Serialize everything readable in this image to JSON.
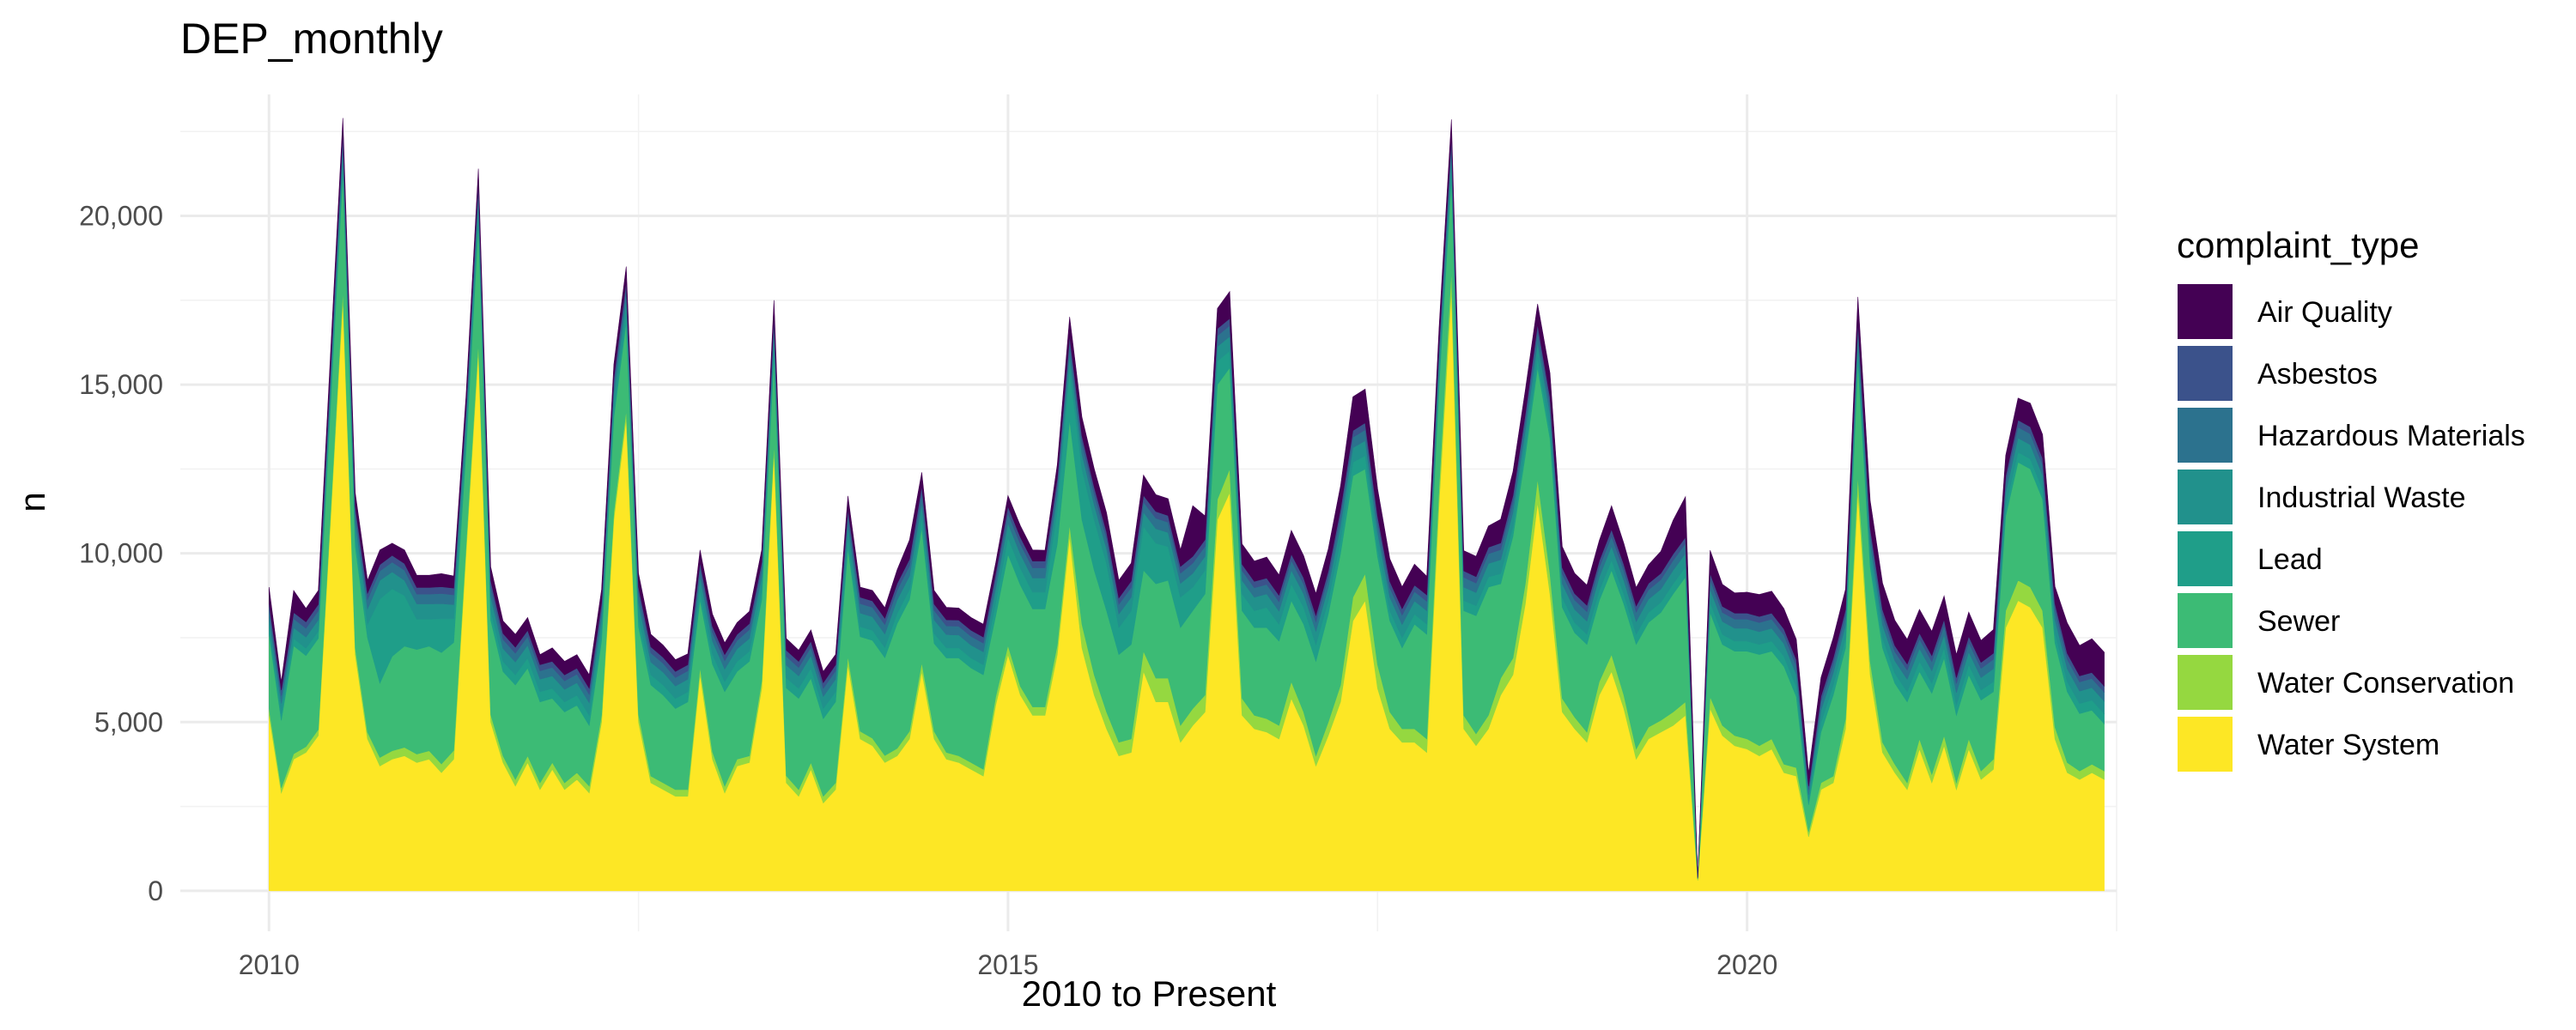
{
  "chart_data": {
    "type": "area",
    "stacked": true,
    "title": "DEP_monthly",
    "xlabel": "2010 to Present",
    "ylabel": "n",
    "xlim": [
      2009.4,
      2022.5
    ],
    "ylim": [
      -1200,
      23600
    ],
    "x_ticks": [
      2010,
      2015,
      2020
    ],
    "x_tick_labels": [
      "2010",
      "2015",
      "2020"
    ],
    "y_ticks": [
      0,
      5000,
      10000,
      15000,
      20000
    ],
    "y_tick_labels": [
      "0",
      "5,000",
      "10,000",
      "15,000",
      "20,000"
    ],
    "legend_title": "complaint_type",
    "legend_position": "right",
    "grid": true,
    "x_start": 2010.0,
    "x_step": 0.08333,
    "series": [
      {
        "name": "Water System",
        "color": "#FDE725",
        "values": [
          5200,
          2900,
          3900,
          4100,
          4600,
          11000,
          17500,
          7000,
          4500,
          3700,
          3900,
          4000,
          3800,
          3900,
          3500,
          3900,
          10000,
          16000,
          5000,
          3800,
          3100,
          3800,
          3000,
          3600,
          3000,
          3300,
          2900,
          5000,
          11000,
          14000,
          5000,
          3200,
          3000,
          2800,
          2800,
          6400,
          3900,
          2900,
          3700,
          3800,
          6000,
          13000,
          3200,
          2800,
          3600,
          2600,
          3000,
          6700,
          4500,
          4300,
          3800,
          4000,
          4500,
          6500,
          4500,
          3900,
          3800,
          3600,
          3400,
          5500,
          7000,
          5800,
          5200,
          5200,
          7000,
          10500,
          7200,
          5800,
          4800,
          4000,
          4100,
          6500,
          5600,
          5600,
          4400,
          4900,
          5300,
          11000,
          11800,
          5200,
          4800,
          4700,
          4500,
          5700,
          4900,
          3700,
          4600,
          5600,
          8000,
          8600,
          6000,
          4800,
          4400,
          4400,
          4100,
          11500,
          17800,
          4800,
          4300,
          4800,
          5800,
          6400,
          8500,
          11500,
          8800,
          5300,
          4800,
          4400,
          5800,
          6500,
          5400,
          3900,
          4500,
          4700,
          4900,
          5200,
          300,
          5400,
          4600,
          4300,
          4200,
          4000,
          4200,
          3500,
          3400,
          1600,
          3000,
          3200,
          4800,
          11800,
          6400,
          4100,
          3500,
          3000,
          4200,
          3200,
          4300,
          3000,
          4200,
          3300,
          3600,
          7800,
          8600,
          8400,
          7800,
          4500,
          3500,
          3300,
          3500,
          3300
        ]
      },
      {
        "name": "Water Conservation",
        "color": "#95D840",
        "values": [
          200,
          150,
          160,
          170,
          180,
          220,
          300,
          200,
          200,
          250,
          250,
          250,
          250,
          250,
          260,
          260,
          250,
          260,
          220,
          200,
          200,
          200,
          200,
          200,
          200,
          200,
          200,
          210,
          230,
          250,
          230,
          200,
          200,
          200,
          200,
          220,
          220,
          200,
          200,
          200,
          220,
          260,
          210,
          200,
          200,
          200,
          200,
          250,
          230,
          220,
          210,
          220,
          230,
          260,
          230,
          200,
          200,
          200,
          200,
          250,
          270,
          260,
          250,
          250,
          280,
          350,
          700,
          600,
          500,
          400,
          400,
          600,
          700,
          700,
          500,
          500,
          500,
          600,
          700,
          500,
          400,
          400,
          400,
          500,
          400,
          300,
          400,
          500,
          700,
          800,
          700,
          500,
          400,
          400,
          400,
          500,
          600,
          400,
          350,
          400,
          500,
          500,
          600,
          700,
          600,
          400,
          350,
          300,
          400,
          500,
          400,
          300,
          350,
          350,
          400,
          400,
          50,
          350,
          300,
          300,
          300,
          300,
          300,
          250,
          250,
          150,
          200,
          200,
          300,
          500,
          400,
          300,
          250,
          200,
          300,
          250,
          300,
          200,
          300,
          250,
          300,
          500,
          600,
          600,
          500,
          350,
          300,
          250,
          250,
          250
        ]
      },
      {
        "name": "Sewer",
        "color": "#3CBB75",
        "values": [
          2200,
          2000,
          3200,
          2700,
          2700,
          3200,
          3500,
          3000,
          2800,
          2200,
          2800,
          3000,
          3100,
          3100,
          3300,
          3200,
          2800,
          3500,
          2800,
          2500,
          2800,
          2600,
          2400,
          1900,
          2100,
          2000,
          1800,
          2200,
          2800,
          2600,
          2600,
          2700,
          2600,
          2400,
          2600,
          2000,
          2600,
          2800,
          2600,
          2800,
          2400,
          2600,
          2600,
          2700,
          2500,
          2300,
          2400,
          3200,
          2800,
          2900,
          2900,
          3700,
          3900,
          4000,
          2600,
          2800,
          2900,
          2800,
          2800,
          2400,
          2700,
          3000,
          2900,
          2900,
          3000,
          3100,
          3100,
          3100,
          3000,
          2600,
          2800,
          2400,
          2800,
          2900,
          2900,
          2900,
          3000,
          3400,
          3000,
          2600,
          2600,
          2700,
          2500,
          2400,
          2600,
          2800,
          3200,
          3900,
          3600,
          3100,
          3200,
          2700,
          2400,
          3100,
          3100,
          3000,
          2700,
          3100,
          3500,
          3800,
          2800,
          3600,
          3800,
          3300,
          4000,
          2700,
          2500,
          2600,
          2400,
          2500,
          2700,
          3100,
          3100,
          3200,
          3500,
          3700,
          0,
          2500,
          2400,
          2500,
          2600,
          2700,
          2600,
          2900,
          2100,
          800,
          1500,
          2400,
          2100,
          3400,
          2800,
          2800,
          2400,
          2400,
          2000,
          2400,
          2300,
          2000,
          1900,
          2100,
          2000,
          2800,
          3500,
          3500,
          3300,
          2500,
          2100,
          1700,
          1600,
          1400
        ]
      },
      {
        "name": "Lead",
        "color": "#1F9E89",
        "values": [
          200,
          200,
          220,
          220,
          220,
          250,
          280,
          300,
          400,
          2500,
          2000,
          1500,
          900,
          800,
          1000,
          700,
          400,
          300,
          300,
          300,
          300,
          300,
          300,
          300,
          300,
          300,
          300,
          300,
          300,
          300,
          300,
          300,
          300,
          300,
          300,
          300,
          300,
          300,
          300,
          300,
          300,
          300,
          300,
          300,
          300,
          300,
          300,
          300,
          300,
          300,
          300,
          300,
          300,
          300,
          300,
          300,
          300,
          300,
          300,
          400,
          500,
          500,
          500,
          500,
          1000,
          1500,
          1500,
          1500,
          1400,
          800,
          1000,
          1300,
          1200,
          1000,
          900,
          700,
          700,
          700,
          500,
          500,
          500,
          600,
          500,
          500,
          500,
          500,
          400,
          400,
          400,
          400,
          300,
          300,
          300,
          300,
          300,
          300,
          300,
          300,
          300,
          300,
          300,
          300,
          300,
          300,
          300,
          300,
          300,
          300,
          300,
          300,
          300,
          300,
          300,
          300,
          300,
          300,
          10,
          300,
          300,
          300,
          300,
          300,
          300,
          300,
          300,
          100,
          300,
          300,
          300,
          300,
          300,
          300,
          300,
          300,
          300,
          300,
          300,
          300,
          300,
          300,
          300,
          300,
          300,
          300,
          300,
          300,
          300,
          300,
          300,
          300
        ]
      },
      {
        "name": "Industrial Waste",
        "color": "#21918C",
        "values": [
          300,
          300,
          320,
          330,
          330,
          350,
          380,
          400,
          450,
          550,
          500,
          450,
          450,
          450,
          450,
          420,
          400,
          420,
          400,
          380,
          380,
          380,
          370,
          370,
          370,
          370,
          370,
          380,
          400,
          410,
          400,
          380,
          380,
          370,
          370,
          380,
          380,
          370,
          370,
          380,
          380,
          400,
          380,
          370,
          370,
          360,
          370,
          400,
          400,
          400,
          400,
          400,
          400,
          420,
          400,
          390,
          380,
          380,
          380,
          400,
          420,
          420,
          420,
          420,
          430,
          450,
          450,
          440,
          430,
          400,
          400,
          420,
          430,
          420,
          410,
          410,
          410,
          430,
          430,
          400,
          400,
          400,
          390,
          400,
          400,
          390,
          400,
          420,
          430,
          440,
          420,
          400,
          390,
          390,
          400,
          420,
          430,
          400,
          390,
          400,
          410,
          420,
          430,
          450,
          430,
          400,
          390,
          390,
          400,
          410,
          400,
          380,
          390,
          390,
          400,
          400,
          10,
          390,
          380,
          380,
          380,
          380,
          380,
          370,
          360,
          200,
          350,
          360,
          380,
          400,
          390,
          380,
          370,
          370,
          380,
          370,
          380,
          370,
          380,
          370,
          380,
          400,
          420,
          420,
          410,
          390,
          380,
          370,
          370,
          370
        ]
      },
      {
        "name": "Hazardous Materials",
        "color": "#2C728E",
        "values": [
          250,
          230,
          260,
          260,
          270,
          290,
          320,
          300,
          280,
          280,
          290,
          300,
          290,
          290,
          300,
          290,
          280,
          310,
          290,
          270,
          260,
          260,
          250,
          250,
          250,
          250,
          250,
          260,
          280,
          300,
          290,
          270,
          260,
          250,
          250,
          260,
          260,
          250,
          250,
          260,
          260,
          290,
          260,
          250,
          250,
          240,
          250,
          280,
          280,
          280,
          280,
          290,
          300,
          310,
          280,
          260,
          260,
          260,
          260,
          280,
          300,
          300,
          300,
          300,
          310,
          330,
          330,
          320,
          310,
          290,
          290,
          300,
          310,
          300,
          300,
          300,
          300,
          320,
          320,
          290,
          280,
          280,
          280,
          290,
          290,
          280,
          290,
          300,
          310,
          320,
          300,
          280,
          280,
          280,
          280,
          300,
          320,
          290,
          280,
          290,
          300,
          300,
          310,
          330,
          310,
          290,
          280,
          280,
          290,
          300,
          290,
          280,
          280,
          280,
          290,
          290,
          10,
          280,
          270,
          270,
          270,
          270,
          270,
          260,
          260,
          150,
          250,
          260,
          280,
          300,
          290,
          280,
          270,
          270,
          280,
          270,
          280,
          270,
          280,
          270,
          280,
          300,
          320,
          320,
          310,
          290,
          280,
          270,
          270,
          270
        ]
      },
      {
        "name": "Asbestos",
        "color": "#3B528B",
        "values": [
          180,
          170,
          190,
          190,
          190,
          200,
          210,
          200,
          190,
          190,
          200,
          200,
          200,
          200,
          200,
          200,
          190,
          210,
          190,
          180,
          180,
          180,
          180,
          180,
          180,
          180,
          180,
          180,
          190,
          200,
          190,
          180,
          180,
          180,
          180,
          180,
          180,
          180,
          180,
          180,
          180,
          190,
          180,
          180,
          180,
          170,
          180,
          190,
          190,
          190,
          190,
          200,
          200,
          210,
          190,
          180,
          180,
          180,
          180,
          190,
          200,
          200,
          200,
          200,
          200,
          210,
          210,
          210,
          200,
          190,
          190,
          200,
          200,
          200,
          200,
          200,
          200,
          210,
          210,
          190,
          190,
          190,
          190,
          190,
          190,
          190,
          190,
          200,
          200,
          210,
          200,
          190,
          190,
          190,
          190,
          200,
          210,
          190,
          190,
          190,
          200,
          200,
          200,
          210,
          200,
          190,
          190,
          190,
          190,
          200,
          190,
          180,
          190,
          190,
          190,
          190,
          10,
          190,
          180,
          180,
          180,
          180,
          180,
          180,
          180,
          100,
          170,
          180,
          180,
          200,
          190,
          180,
          180,
          180,
          180,
          180,
          180,
          180,
          180,
          180,
          180,
          200,
          210,
          210,
          200,
          190,
          180,
          180,
          180,
          180
        ]
      },
      {
        "name": "Air Quality",
        "color": "#440154",
        "values": [
          470,
          250,
          650,
          400,
          410,
          450,
          410,
          400,
          380,
          430,
          360,
          400,
          360,
          360,
          390,
          360,
          380,
          400,
          400,
          370,
          380,
          380,
          300,
          400,
          400,
          400,
          400,
          400,
          400,
          440,
          400,
          370,
          360,
          350,
          320,
          360,
          360,
          350,
          350,
          360,
          360,
          460,
          350,
          330,
          330,
          330,
          300,
          380,
          300,
          310,
          310,
          400,
          570,
          400,
          400,
          370,
          360,
          380,
          380,
          300,
          320,
          340,
          330,
          320,
          410,
          570,
          550,
          540,
          560,
          520,
          530,
          600,
          500,
          500,
          500,
          1500,
          700,
          600,
          800,
          600,
          600,
          620,
          600,
          700,
          650,
          650,
          650,
          680,
          1000,
          1000,
          800,
          670,
          650,
          620,
          550,
          500,
          500,
          600,
          600,
          630,
          700,
          700,
          700,
          600,
          700,
          620,
          600,
          600,
          600,
          700,
          620,
          550,
          550,
          650,
          1000,
          1200,
          0,
          680,
          650,
          600,
          620,
          650,
          650,
          600,
          600,
          400,
          550,
          600,
          600,
          700,
          800,
          780,
          750,
          730,
          700,
          720,
          700,
          680,
          720,
          650,
          700,
          600,
          650,
          700,
          700,
          500,
          900,
          900,
          1000,
          1000
        ]
      }
    ]
  }
}
